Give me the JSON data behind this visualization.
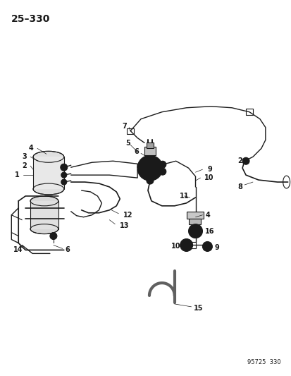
{
  "title": "25–330",
  "footer": "95725  330",
  "background_color": "#ffffff",
  "line_color": "#1a1a1a",
  "text_color": "#1a1a1a",
  "figsize": [
    4.14,
    5.33
  ],
  "dpi": 100
}
